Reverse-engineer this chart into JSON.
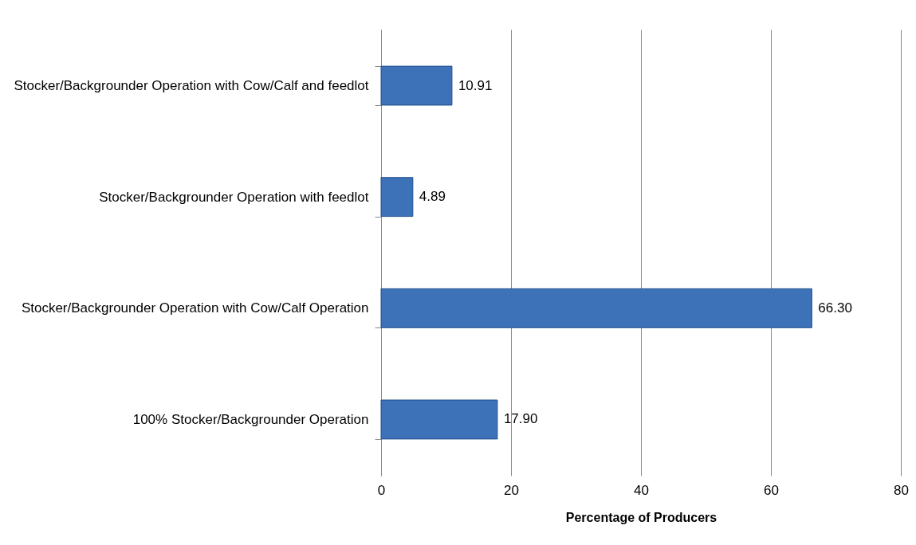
{
  "chart_data": {
    "type": "bar",
    "orientation": "horizontal",
    "xlabel": "Percentage of Producers",
    "categories": [
      "Stocker/Backgrounder Operation with Cow/Calf and feedlot",
      "Stocker/Backgrounder Operation with feedlot",
      "Stocker/Backgrounder Operation with Cow/Calf Operation",
      "100% Stocker/Backgrounder Operation"
    ],
    "values": [
      10.91,
      4.89,
      66.3,
      17.9
    ],
    "value_labels": [
      "10.91",
      "4.89",
      "66.30",
      "17.90"
    ],
    "color": "#3d72b8",
    "xlim": [
      0,
      80
    ],
    "xticks": [
      0,
      20,
      40,
      60,
      80
    ],
    "grid": "x"
  }
}
